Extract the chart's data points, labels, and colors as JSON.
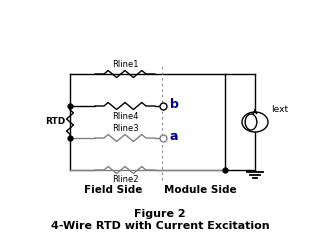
{
  "title_line1": "Figure 2",
  "title_line2": "4-Wire RTD with Current Excitation",
  "field_side_label": "Field Side",
  "module_side_label": "Module Side",
  "label_rline1": "Rline1",
  "label_rline2": "Rline2",
  "label_rline3": "Rline3",
  "label_rline4": "Rline4",
  "label_rtd": "RTD",
  "label_iext": "Iext",
  "label_a": "a",
  "label_b": "b",
  "line_color": "#000000",
  "gray_color": "#808080",
  "bg_color": "#ffffff",
  "fig_width": 3.2,
  "fig_height": 2.44,
  "dpi": 100
}
